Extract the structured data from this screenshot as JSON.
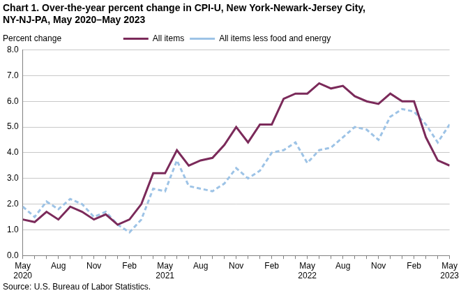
{
  "chart_data": {
    "type": "line",
    "title": [
      "Chart 1. Over-the-year percent change in CPI-U, New York-Newark-Jersey City,",
      "NY-NJ-PA, May 2020–May 2023"
    ],
    "y_label": "Percent change",
    "note": "Source: U.S. Bureau of Labor Statistics.",
    "categories": [
      "May 2020",
      null,
      null,
      "Aug",
      null,
      null,
      "Nov",
      null,
      null,
      "Feb",
      null,
      null,
      "May 2021",
      null,
      null,
      "Aug",
      null,
      null,
      "Nov",
      null,
      null,
      "Feb",
      null,
      null,
      "May 2022",
      null,
      null,
      "Aug",
      null,
      null,
      "Nov",
      null,
      null,
      "Feb",
      null,
      null,
      "May 2023"
    ],
    "series": [
      {
        "name": "All items",
        "color": "#7b2a5a",
        "line_style": "solid",
        "values": [
          1.4,
          1.3,
          1.7,
          1.4,
          1.9,
          1.7,
          1.4,
          1.6,
          1.2,
          1.4,
          2.0,
          3.2,
          3.2,
          4.1,
          3.5,
          3.7,
          3.8,
          4.3,
          5.0,
          4.4,
          5.1,
          5.1,
          6.1,
          6.3,
          6.3,
          6.7,
          6.5,
          6.6,
          6.2,
          6.0,
          5.9,
          6.3,
          6.0,
          6.0,
          4.6,
          3.7,
          3.5
        ]
      },
      {
        "name": "All items less food and energy",
        "color": "#9dc3e6",
        "line_style": "dashed",
        "values": [
          1.9,
          1.5,
          2.1,
          1.8,
          2.2,
          2.0,
          1.5,
          1.7,
          1.2,
          0.9,
          1.4,
          2.6,
          2.5,
          3.7,
          2.7,
          2.6,
          2.5,
          2.8,
          3.4,
          3.0,
          3.3,
          4.0,
          4.1,
          4.4,
          3.6,
          4.1,
          4.2,
          4.6,
          5.0,
          4.9,
          4.5,
          5.4,
          5.7,
          5.6,
          5.1,
          4.4,
          5.1
        ]
      }
    ],
    "ylim": [
      0,
      8
    ],
    "yticks": [
      {
        "value": 0,
        "label": "0.0"
      },
      {
        "value": 1,
        "label": "1.0"
      },
      {
        "value": 2,
        "label": "2.0"
      },
      {
        "value": 3,
        "label": "3.0"
      },
      {
        "value": 4,
        "label": "4.0"
      },
      {
        "value": 5,
        "label": "5.0"
      },
      {
        "value": 6,
        "label": "6.0"
      },
      {
        "value": 7,
        "label": "7.0"
      },
      {
        "value": 8,
        "label": "8.0"
      }
    ],
    "grid": true,
    "legend": "top"
  }
}
